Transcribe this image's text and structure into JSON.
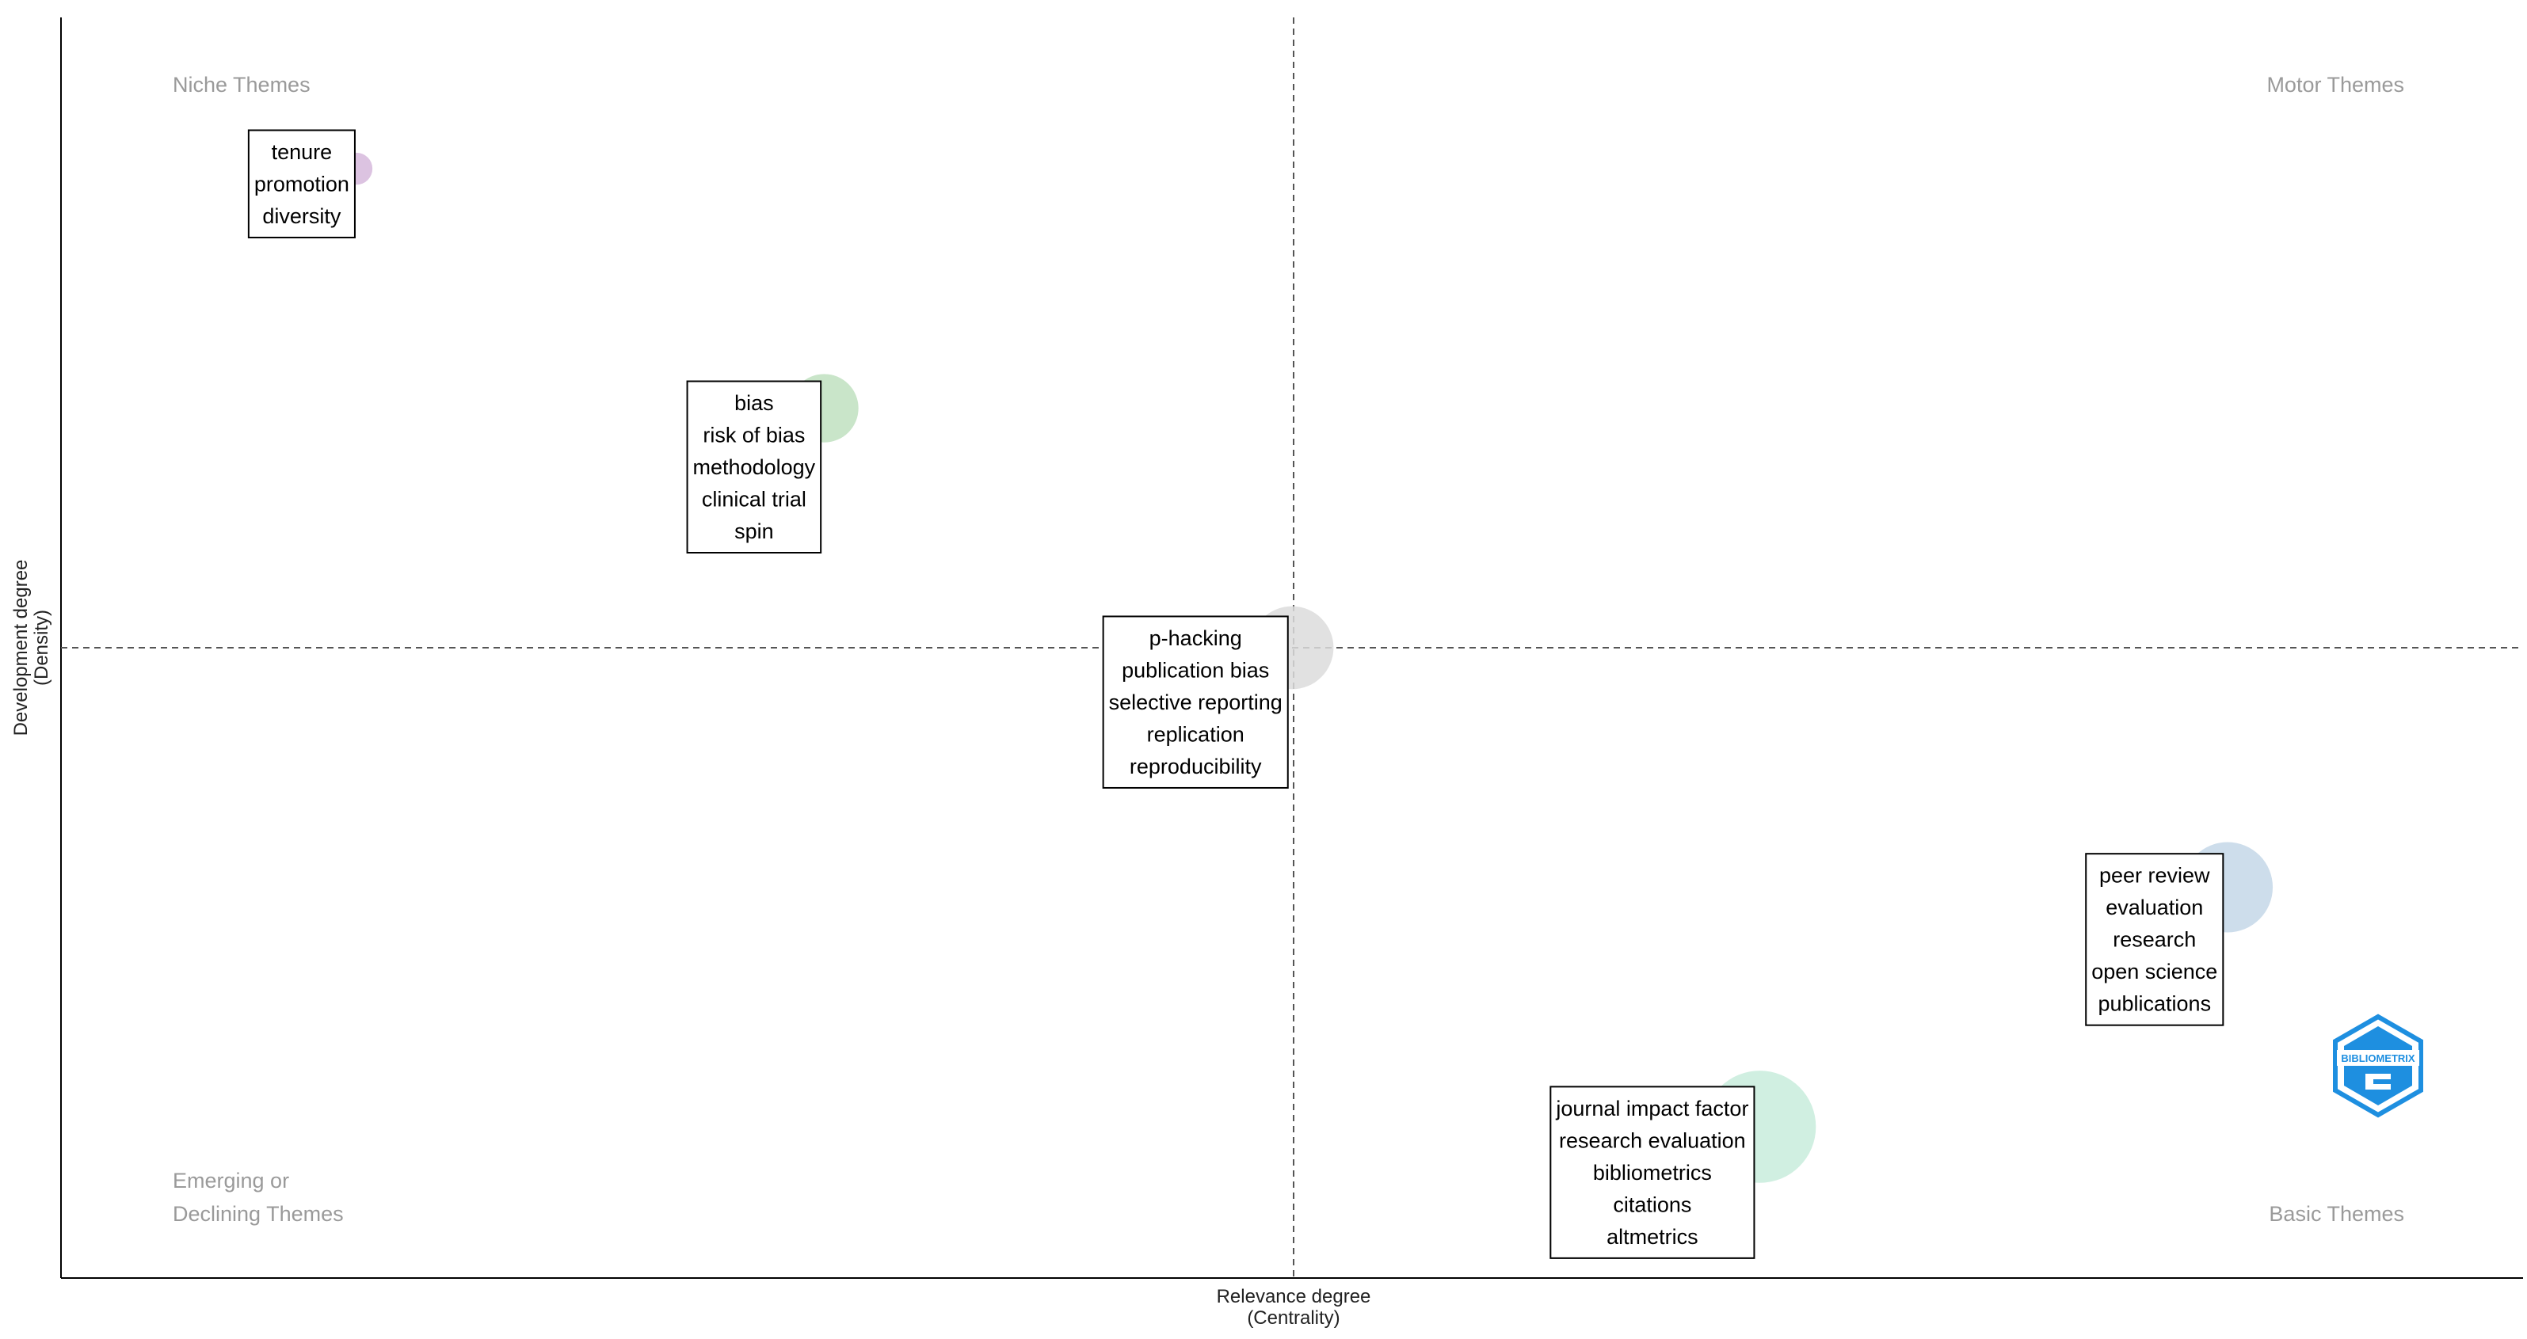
{
  "chart_data": {
    "type": "scatter",
    "title": "",
    "xlabel": "Relevance degree",
    "xlabel_sub": "(Centrality)",
    "ylabel": "Development degree",
    "ylabel_sub": "(Density)",
    "grid": false,
    "quadrants": {
      "top_left": [
        "Niche Themes"
      ],
      "top_right": [
        "Motor Themes"
      ],
      "bottom_left": [
        "Emerging or",
        "Declining Themes"
      ],
      "bottom_right": [
        "Basic Themes"
      ]
    },
    "clusters": [
      {
        "keywords": [
          "tenure",
          "promotion",
          "diversity"
        ],
        "centrality": 0.12,
        "density": 0.88,
        "size": 0.1,
        "color": "#d6b8dc"
      },
      {
        "keywords": [
          "bias",
          "risk of bias",
          "methodology",
          "clinical trial",
          "spin"
        ],
        "centrality": 0.31,
        "density": 0.69,
        "size": 0.35,
        "color": "#bfe0bf"
      },
      {
        "keywords": [
          "p-hacking",
          "publication bias",
          "selective reporting",
          "replication",
          "reproducibility"
        ],
        "centrality": 0.5,
        "density": 0.5,
        "size": 0.45,
        "color": "#dcdcdc"
      },
      {
        "keywords": [
          "peer review",
          "evaluation",
          "research",
          "open science",
          "publications"
        ],
        "centrality": 0.88,
        "density": 0.31,
        "size": 0.5,
        "color": "#c4d7e8"
      },
      {
        "keywords": [
          "journal impact factor",
          "research evaluation",
          "bibliometrics",
          "citations",
          "altmetrics"
        ],
        "centrality": 0.69,
        "density": 0.12,
        "size": 0.65,
        "color": "#c8ecdc"
      }
    ],
    "reference_lines": {
      "x": 0.5,
      "y": 0.5
    },
    "xlim": [
      0,
      1
    ],
    "ylim": [
      0,
      1
    ]
  },
  "logo": {
    "name": "bibliometrix-logo-icon",
    "text": "BIBLIOMETRIX",
    "color": "#1e8fe0"
  }
}
